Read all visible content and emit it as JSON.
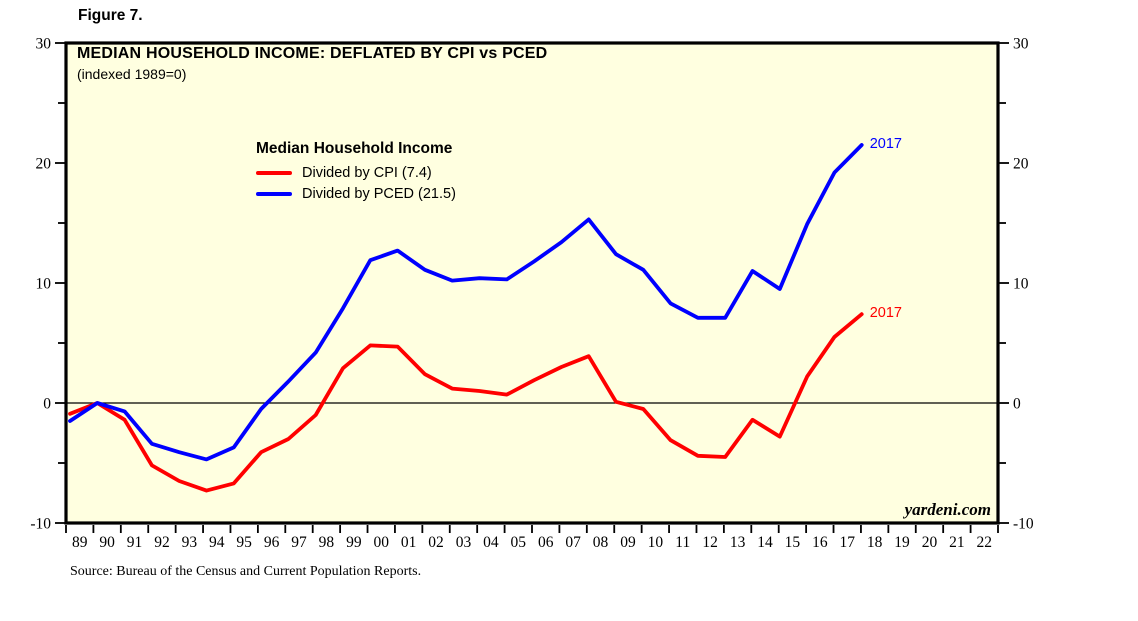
{
  "figure_label": "Figure 7.",
  "title": "MEDIAN HOUSEHOLD INCOME: DEFLATED BY CPI vs PCED",
  "subtitle": "(indexed 1989=0)",
  "watermark": "yardeni.com",
  "source_note": "Source: Bureau of the Census and Current Population Reports.",
  "colors": {
    "plot_bg": "#ffffe0",
    "axis": "#000000",
    "cpi_red": "#ff0000",
    "pced_blue": "#0000ff"
  },
  "chart_data": {
    "type": "line",
    "title": "MEDIAN HOUSEHOLD INCOME: DEFLATED BY CPI vs PCED",
    "subtitle": "(indexed 1989=0)",
    "legend": {
      "heading": "Median Household Income",
      "position": "inside top-left"
    },
    "grid": "off (single zero reference line)",
    "ylim": [
      -10,
      30
    ],
    "y_ticks": [
      -10,
      0,
      10,
      20,
      30
    ],
    "y_minor_ticks": [
      -5,
      5,
      15,
      25
    ],
    "y_axis_sides": "both",
    "x_tick_labels": [
      "89",
      "90",
      "91",
      "92",
      "93",
      "94",
      "95",
      "96",
      "97",
      "98",
      "99",
      "00",
      "01",
      "02",
      "03",
      "04",
      "05",
      "06",
      "07",
      "08",
      "09",
      "10",
      "11",
      "12",
      "13",
      "14",
      "15",
      "16",
      "17",
      "18",
      "19",
      "20",
      "21",
      "22"
    ],
    "years": [
      1988,
      1989,
      1990,
      1991,
      1992,
      1993,
      1994,
      1995,
      1996,
      1997,
      1998,
      1999,
      2000,
      2001,
      2002,
      2003,
      2004,
      2005,
      2006,
      2007,
      2008,
      2009,
      2010,
      2011,
      2012,
      2013,
      2014,
      2015,
      2016,
      2017
    ],
    "series": [
      {
        "name": "Divided by CPI (7.4)",
        "color": "#ff0000",
        "end_label": "2017",
        "values": [
          -0.9,
          0.0,
          -1.4,
          -5.2,
          -6.5,
          -7.3,
          -6.7,
          -4.1,
          -3.0,
          -1.0,
          2.9,
          4.8,
          4.7,
          2.4,
          1.2,
          1.0,
          0.7,
          1.9,
          3.0,
          3.9,
          0.1,
          -0.5,
          -3.1,
          -4.4,
          -4.5,
          -1.4,
          -2.8,
          2.2,
          5.5,
          7.4
        ]
      },
      {
        "name": "Divided by PCED (21.5)",
        "color": "#0000ff",
        "end_label": "2017",
        "values": [
          -1.5,
          0.0,
          -0.7,
          -3.4,
          -4.1,
          -4.7,
          -3.7,
          -0.5,
          1.8,
          4.2,
          7.9,
          11.9,
          12.7,
          11.1,
          10.2,
          10.4,
          10.3,
          11.8,
          13.4,
          15.3,
          12.4,
          11.1,
          8.3,
          7.1,
          7.1,
          11.0,
          9.5,
          14.9,
          19.2,
          21.5
        ]
      }
    ]
  }
}
